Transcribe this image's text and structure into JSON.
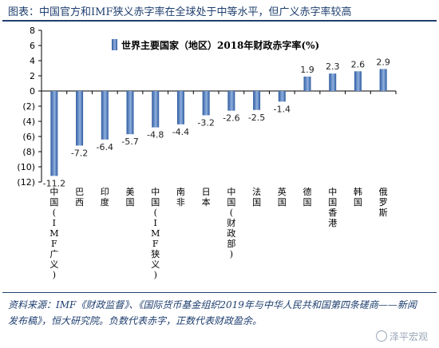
{
  "header": {
    "title": "图表：中国官方和IMF狭义赤字率在全球处于中等水平，但广义赤字率较高"
  },
  "chart_data": {
    "type": "bar",
    "categories": [
      "中国(IMF广义)",
      "巴西",
      "印度",
      "美国",
      "中国(IMF狭义)",
      "南非",
      "日本",
      "中国(财政部)",
      "法国",
      "英国",
      "德国",
      "中国香港",
      "韩国",
      "俄罗斯"
    ],
    "values": [
      -11.2,
      -7.2,
      -6.4,
      -5.7,
      -4.8,
      -4.4,
      -3.2,
      -2.6,
      -2.5,
      -1.4,
      1.9,
      2.3,
      2.6,
      2.9
    ],
    "value_labels": [
      "-11.2",
      "-7.2",
      "-6.4",
      "-5.7",
      "-4.8",
      "-4.4",
      "-3.2",
      "-2.6",
      "-2.5",
      "-1.4",
      "1.9",
      "2.3",
      "2.6",
      "2.9"
    ],
    "series": [
      {
        "name": "世界主要国家（地区）2018年财政赤字率(%)",
        "values": [
          -11.2,
          -7.2,
          -6.4,
          -5.7,
          -4.8,
          -4.4,
          -3.2,
          -2.6,
          -2.5,
          -1.4,
          1.9,
          2.3,
          2.6,
          2.9
        ]
      }
    ],
    "ylim": [
      -12,
      8
    ],
    "yticks": [
      8,
      6,
      4,
      2,
      0,
      -2,
      -4,
      -6,
      -8,
      -10,
      -12
    ],
    "ytick_labels": [
      "8",
      "6",
      "4",
      "2",
      "0",
      "(2)",
      "(4)",
      "(6)",
      "(8)",
      "(10)",
      "(12)"
    ],
    "legend_position": "top-center",
    "grid": false,
    "colors": {
      "bar_dark": "#2e5aa0",
      "bar_light": "#8fb0de"
    }
  },
  "footer": {
    "source": "资料来源：IMF《财政监督》、《国际货币基金组织2019年与中华人民共和国第四条磋商——新闻发布稿》，恒大研究院。负数代表赤字，正数代表财政盈余。",
    "watermark": "泽平宏观"
  }
}
